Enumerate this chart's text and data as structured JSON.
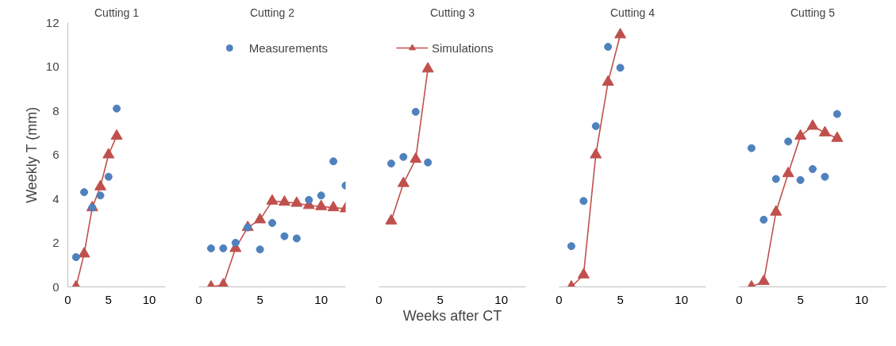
{
  "chart_data": [
    {
      "type": "scatter",
      "title": "Cutting 1",
      "ylabel": "Weekly T (mm)",
      "xlim": [
        0,
        12
      ],
      "xticks": [
        0,
        5,
        10
      ],
      "ylim": [
        0,
        12
      ],
      "yticks": [
        0,
        2,
        4,
        6,
        8,
        10,
        12
      ],
      "grid": false,
      "legend": false,
      "series": [
        {
          "type": "scatter",
          "marker": "circle",
          "color": "#4f81bd",
          "x": [
            1,
            2,
            3,
            4,
            5,
            6
          ],
          "values": [
            1.35,
            4.3,
            3.6,
            4.15,
            5.0,
            8.1
          ]
        },
        {
          "type": "line",
          "marker": "triangle",
          "color": "#c0504d",
          "x": [
            1,
            2,
            3,
            4,
            5,
            6
          ],
          "values": [
            0,
            1.5,
            3.6,
            4.55,
            6.0,
            6.85
          ]
        }
      ]
    },
    {
      "type": "scatter",
      "title": "Cutting 2",
      "xlim": [
        0,
        12
      ],
      "xticks": [
        0,
        5,
        10
      ],
      "ylim": [
        0,
        12
      ],
      "tick_labels": "x",
      "grid": false,
      "legend": "top right",
      "series": [
        {
          "type": "scatter",
          "name": "Measurements",
          "marker": "circle",
          "color": "#4f81bd",
          "x": [
            1,
            2,
            3,
            4,
            5,
            6,
            7,
            8,
            9,
            10,
            11,
            12
          ],
          "values": [
            1.75,
            1.75,
            2.0,
            2.7,
            1.7,
            2.9,
            2.3,
            2.2,
            3.95,
            4.15,
            5.7,
            4.6
          ]
        },
        {
          "type": "line",
          "marker": "triangle",
          "color": "#c0504d",
          "x": [
            1,
            2,
            3,
            4,
            5,
            6,
            7,
            8,
            9,
            10,
            11,
            12
          ],
          "values": [
            0,
            0.1,
            1.75,
            2.7,
            3.05,
            3.9,
            3.85,
            3.8,
            3.7,
            3.65,
            3.6,
            3.55
          ]
        }
      ]
    },
    {
      "type": "scatter",
      "title": "Cutting 3",
      "xlabel": "Weeks after CT",
      "xlim": [
        0,
        12
      ],
      "xticks": [
        0,
        5,
        10
      ],
      "ylim": [
        0,
        12
      ],
      "tick_labels": "x",
      "grid": false,
      "legend": "top left",
      "series": [
        {
          "type": "scatter",
          "marker": "circle",
          "color": "#4f81bd",
          "x": [
            1,
            2,
            3,
            4
          ],
          "values": [
            5.6,
            5.9,
            7.95,
            5.65
          ]
        },
        {
          "type": "line",
          "name": "Simulations",
          "marker": "triangle",
          "color": "#c0504d",
          "x": [
            1,
            2,
            3,
            4
          ],
          "values": [
            3.0,
            4.7,
            5.8,
            9.9
          ]
        }
      ]
    },
    {
      "type": "scatter",
      "title": "Cutting 4",
      "xlim": [
        0,
        12
      ],
      "xticks": [
        0,
        5,
        10
      ],
      "ylim": [
        0,
        12
      ],
      "tick_labels": "x",
      "grid": false,
      "legend": false,
      "series": [
        {
          "type": "scatter",
          "marker": "circle",
          "color": "#4f81bd",
          "x": [
            1,
            2,
            3,
            4,
            5
          ],
          "values": [
            1.85,
            3.9,
            7.3,
            10.9,
            9.95
          ]
        },
        {
          "type": "line",
          "marker": "triangle",
          "color": "#c0504d",
          "x": [
            1,
            2,
            3,
            4,
            5
          ],
          "values": [
            0,
            0.55,
            6.0,
            9.3,
            11.45
          ]
        }
      ]
    },
    {
      "type": "scatter",
      "title": "Cutting 5",
      "xlim": [
        0,
        12
      ],
      "xticks": [
        0,
        5,
        10
      ],
      "ylim": [
        0,
        12
      ],
      "tick_labels": "x",
      "grid": false,
      "legend": false,
      "series": [
        {
          "type": "scatter",
          "marker": "circle",
          "color": "#4f81bd",
          "x": [
            1,
            2,
            3,
            4,
            5,
            6,
            7,
            8
          ],
          "values": [
            6.3,
            3.05,
            4.9,
            6.6,
            4.85,
            5.35,
            5.0,
            7.85
          ]
        },
        {
          "type": "line",
          "marker": "triangle",
          "color": "#c0504d",
          "x": [
            1,
            2,
            3,
            4,
            5,
            6,
            7,
            8
          ],
          "values": [
            0,
            0.25,
            3.4,
            5.15,
            6.85,
            7.3,
            7.0,
            6.75
          ]
        }
      ]
    }
  ]
}
